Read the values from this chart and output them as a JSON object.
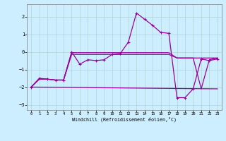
{
  "xlabel": "Windchill (Refroidissement éolien,°C)",
  "background_color": "#cceeff",
  "grid_color": "#b0d4d4",
  "line_color": "#990099",
  "xlim": [
    -0.5,
    23.5
  ],
  "ylim": [
    -3.3,
    2.7
  ],
  "xticks": [
    0,
    1,
    2,
    3,
    4,
    5,
    6,
    7,
    8,
    9,
    10,
    11,
    12,
    13,
    14,
    15,
    16,
    17,
    18,
    19,
    20,
    21,
    22,
    23
  ],
  "yticks": [
    -3,
    -2,
    -1,
    0,
    1,
    2
  ],
  "series": [
    {
      "points": [
        [
          0,
          -2.0
        ],
        [
          1,
          -1.5
        ],
        [
          2,
          -1.55
        ],
        [
          3,
          -1.6
        ],
        [
          4,
          -1.6
        ],
        [
          5,
          0.0
        ],
        [
          6,
          -0.7
        ],
        [
          7,
          -0.45
        ],
        [
          8,
          -0.5
        ],
        [
          9,
          -0.45
        ],
        [
          10,
          -0.15
        ],
        [
          11,
          -0.1
        ],
        [
          12,
          0.55
        ],
        [
          13,
          2.2
        ],
        [
          14,
          1.85
        ],
        [
          15,
          1.5
        ],
        [
          16,
          1.1
        ],
        [
          17,
          1.05
        ],
        [
          18,
          -2.6
        ],
        [
          19,
          -2.6
        ],
        [
          20,
          -2.1
        ],
        [
          21,
          -0.4
        ],
        [
          22,
          -0.5
        ],
        [
          23,
          -0.4
        ]
      ],
      "marker": true
    },
    {
      "points": [
        [
          0,
          -2.0
        ],
        [
          1,
          -1.55
        ],
        [
          2,
          -1.55
        ],
        [
          3,
          -1.6
        ],
        [
          4,
          -1.6
        ],
        [
          5,
          -0.15
        ],
        [
          6,
          -0.15
        ],
        [
          7,
          -0.15
        ],
        [
          8,
          -0.15
        ],
        [
          9,
          -0.15
        ],
        [
          10,
          -0.15
        ],
        [
          11,
          -0.15
        ],
        [
          12,
          -0.15
        ],
        [
          13,
          -0.15
        ],
        [
          14,
          -0.15
        ],
        [
          15,
          -0.15
        ],
        [
          16,
          -0.15
        ],
        [
          17,
          -0.15
        ],
        [
          18,
          -0.35
        ],
        [
          19,
          -0.35
        ],
        [
          20,
          -0.35
        ],
        [
          21,
          -0.35
        ],
        [
          22,
          -0.35
        ],
        [
          23,
          -0.35
        ]
      ],
      "marker": false
    },
    {
      "points": [
        [
          0,
          -2.0
        ],
        [
          23,
          -2.1
        ]
      ],
      "marker": false
    },
    {
      "points": [
        [
          0,
          -2.0
        ],
        [
          1,
          -1.55
        ],
        [
          2,
          -1.55
        ],
        [
          3,
          -1.6
        ],
        [
          4,
          -1.6
        ],
        [
          5,
          -0.05
        ],
        [
          6,
          -0.05
        ],
        [
          7,
          -0.05
        ],
        [
          8,
          -0.05
        ],
        [
          9,
          -0.05
        ],
        [
          10,
          -0.05
        ],
        [
          11,
          -0.05
        ],
        [
          12,
          -0.05
        ],
        [
          13,
          -0.05
        ],
        [
          14,
          -0.05
        ],
        [
          15,
          -0.05
        ],
        [
          16,
          -0.05
        ],
        [
          17,
          -0.05
        ],
        [
          18,
          -0.35
        ],
        [
          19,
          -0.35
        ],
        [
          20,
          -0.35
        ],
        [
          21,
          -2.1
        ],
        [
          22,
          -0.45
        ],
        [
          23,
          -0.35
        ]
      ],
      "marker": false
    }
  ]
}
